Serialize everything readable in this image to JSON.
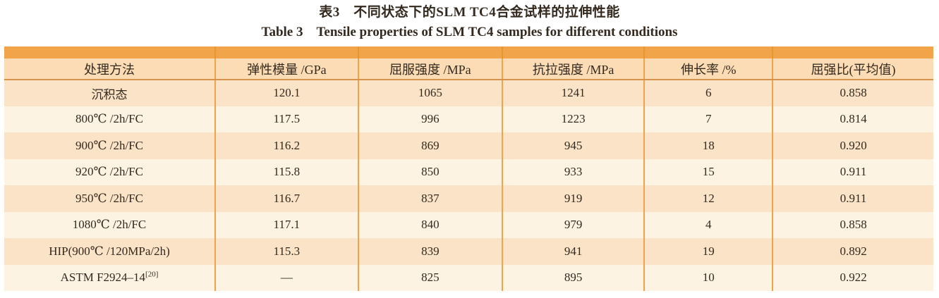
{
  "titles": {
    "zh": "表3　不同状态下的SLM TC4合金试样的拉伸性能",
    "en": "Table 3　Tensile properties of SLM TC4 samples for different conditions"
  },
  "colors": {
    "band": "#F2A44A",
    "band_line": "#E8962F",
    "header_bg": "#FBDCB4",
    "header_rule": "#D6934E",
    "row_odd": "#FAE3C6",
    "row_even": "#FDF3E3",
    "grid_line": "#F1A34A",
    "text": "#33291F"
  },
  "table": {
    "columns": [
      "处理方法",
      "弹性模量 /GPa",
      "屈服强度 /MPa",
      "抗拉强度 /MPa",
      "伸长率 /%",
      "屈强比(平均值)"
    ],
    "rows": [
      {
        "method": "沉积态",
        "sup": "",
        "values": [
          "120.1",
          "1065",
          "1241",
          "6",
          "0.858"
        ]
      },
      {
        "method": "800℃ /2h/FC",
        "sup": "",
        "values": [
          "117.5",
          "996",
          "1223",
          "7",
          "0.814"
        ]
      },
      {
        "method": "900℃ /2h/FC",
        "sup": "",
        "values": [
          "116.2",
          "869",
          "945",
          "18",
          "0.920"
        ]
      },
      {
        "method": "920℃ /2h/FC",
        "sup": "",
        "values": [
          "115.8",
          "850",
          "933",
          "15",
          "0.911"
        ]
      },
      {
        "method": "950℃ /2h/FC",
        "sup": "",
        "values": [
          "116.7",
          "837",
          "919",
          "12",
          "0.911"
        ]
      },
      {
        "method": "1080℃ /2h/FC",
        "sup": "",
        "values": [
          "117.1",
          "840",
          "979",
          "4",
          "0.858"
        ]
      },
      {
        "method": "HIP(900℃ /120MPa/2h)",
        "sup": "",
        "values": [
          "115.3",
          "839",
          "941",
          "19",
          "0.892"
        ]
      },
      {
        "method": "ASTM F2924–14",
        "sup": "[20]",
        "values": [
          "—",
          "825",
          "895",
          "10",
          "0.922"
        ]
      }
    ]
  }
}
